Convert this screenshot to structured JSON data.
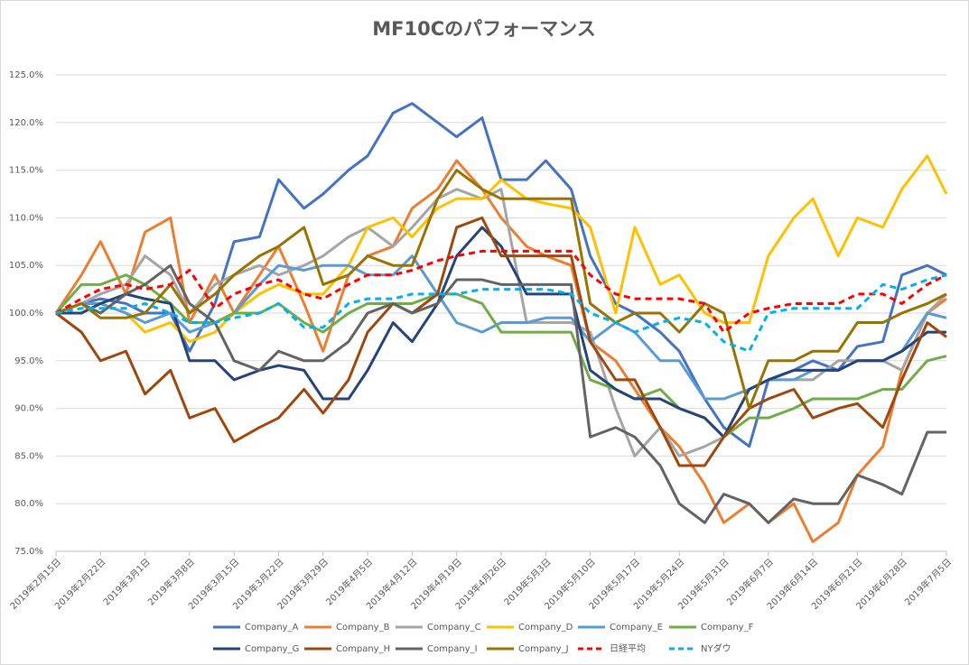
{
  "chart_data": {
    "type": "line",
    "title": "MF10Cのパフォーマンス",
    "x": [
      "2019-02-15",
      "2019-02-19",
      "2019-02-22",
      "2019-02-26",
      "2019-03-01",
      "2019-03-05",
      "2019-03-08",
      "2019-03-12",
      "2019-03-15",
      "2019-03-19",
      "2019-03-22",
      "2019-03-26",
      "2019-03-29",
      "2019-04-02",
      "2019-04-05",
      "2019-04-09",
      "2019-04-12",
      "2019-04-16",
      "2019-04-19",
      "2019-04-23",
      "2019-04-26",
      "2019-04-30",
      "2019-05-03",
      "2019-05-07",
      "2019-05-10",
      "2019-05-14",
      "2019-05-17",
      "2019-05-21",
      "2019-05-24",
      "2019-05-28",
      "2019-05-31",
      "2019-06-04",
      "2019-06-07",
      "2019-06-11",
      "2019-06-14",
      "2019-06-18",
      "2019-06-21",
      "2019-06-25",
      "2019-06-28",
      "2019-07-02",
      "2019-07-05"
    ],
    "xlim": [
      "2019-02-15",
      "2019-07-05"
    ],
    "xticks": [
      {
        "value": "2019-02-15",
        "label": "2019年2月15日"
      },
      {
        "value": "2019-02-22",
        "label": "2019年2月22日"
      },
      {
        "value": "2019-03-01",
        "label": "2019年3月1日"
      },
      {
        "value": "2019-03-08",
        "label": "2019年3月8日"
      },
      {
        "value": "2019-03-15",
        "label": "2019年3月15日"
      },
      {
        "value": "2019-03-22",
        "label": "2019年3月22日"
      },
      {
        "value": "2019-03-29",
        "label": "2019年3月29日"
      },
      {
        "value": "2019-04-05",
        "label": "2019年4月5日"
      },
      {
        "value": "2019-04-12",
        "label": "2019年4月12日"
      },
      {
        "value": "2019-04-19",
        "label": "2019年4月19日"
      },
      {
        "value": "2019-04-26",
        "label": "2019年4月26日"
      },
      {
        "value": "2019-05-03",
        "label": "2019年5月3日"
      },
      {
        "value": "2019-05-10",
        "label": "2019年5月10日"
      },
      {
        "value": "2019-05-17",
        "label": "2019年5月17日"
      },
      {
        "value": "2019-05-24",
        "label": "2019年5月24日"
      },
      {
        "value": "2019-05-31",
        "label": "2019年5月31日"
      },
      {
        "value": "2019-06-07",
        "label": "2019年6月7日"
      },
      {
        "value": "2019-06-14",
        "label": "2019年6月14日"
      },
      {
        "value": "2019-06-21",
        "label": "2019年6月21日"
      },
      {
        "value": "2019-06-28",
        "label": "2019年6月28日"
      },
      {
        "value": "2019-07-05",
        "label": "2019年7月5日"
      }
    ],
    "ylim": [
      75,
      125
    ],
    "yticks": [
      {
        "value": 75,
        "label": "75.0%"
      },
      {
        "value": 80,
        "label": "80.0%"
      },
      {
        "value": 85,
        "label": "85.0%"
      },
      {
        "value": 90,
        "label": "90.0%"
      },
      {
        "value": 95,
        "label": "95.0%"
      },
      {
        "value": 100,
        "label": "100.0%"
      },
      {
        "value": 105,
        "label": "105.0%"
      },
      {
        "value": 110,
        "label": "110.0%"
      },
      {
        "value": 115,
        "label": "115.0%"
      },
      {
        "value": 120,
        "label": "120.0%"
      },
      {
        "value": 125,
        "label": "125.0%"
      }
    ],
    "grid": true,
    "legend": "bottom",
    "series": [
      {
        "name": "Company_A",
        "color": "#4472c4",
        "values": [
          100,
          101,
          101.5,
          101,
          100,
          100,
          96,
          101,
          107.5,
          108,
          114,
          111,
          112.5,
          115,
          116.5,
          121,
          122,
          120,
          118.5,
          120.5,
          114,
          114,
          116,
          113,
          106,
          101,
          100,
          98,
          96,
          91,
          88,
          86,
          93,
          94,
          95,
          94,
          96.5,
          97,
          104,
          105,
          104
        ]
      },
      {
        "name": "Company_B",
        "color": "#ed7d31",
        "values": [
          100,
          104,
          107.5,
          102,
          108.5,
          110,
          99,
          104,
          100,
          104,
          107,
          101,
          96,
          104,
          106,
          107,
          111,
          113,
          116,
          113,
          110,
          107,
          106,
          105,
          97,
          95,
          92,
          88,
          86,
          82,
          78,
          80,
          78,
          80,
          76,
          78,
          83,
          86,
          94,
          100,
          101.5
        ]
      },
      {
        "name": "Company_C",
        "color": "#a5a5a5",
        "values": [
          100,
          101,
          102,
          103,
          106,
          104,
          100,
          103,
          104,
          105,
          104,
          105,
          106,
          108,
          109,
          107,
          109,
          112,
          113,
          112,
          113,
          99,
          99,
          99,
          98,
          90,
          85,
          88,
          85,
          86,
          87,
          92,
          93,
          93,
          93,
          95,
          95,
          95,
          94,
          100,
          102
        ]
      },
      {
        "name": "Company_D",
        "color": "#ffc000",
        "values": [
          100,
          101,
          101,
          100,
          98,
          99,
          97,
          98,
          100,
          102,
          103,
          102,
          102,
          105,
          109,
          110,
          108,
          111,
          112,
          112,
          114,
          112,
          111.5,
          111,
          109,
          100,
          109,
          103,
          104,
          100,
          99,
          99,
          106,
          110,
          112,
          106,
          110,
          109,
          113,
          116.5,
          112.5
        ]
      },
      {
        "name": "Company_E",
        "color": "#5b9bd5",
        "values": [
          100,
          101,
          101,
          100,
          99,
          100,
          98,
          99,
          100,
          103,
          105,
          104.5,
          105,
          105,
          104,
          104,
          106,
          102,
          99,
          98,
          99,
          99,
          99.5,
          99.5,
          97,
          99,
          98,
          95,
          95,
          91,
          91,
          92,
          93,
          93,
          94,
          94,
          95,
          95,
          96,
          100,
          99.5
        ]
      },
      {
        "name": "Company_F",
        "color": "#70ad47",
        "values": [
          100,
          103,
          103,
          104,
          103,
          101,
          99,
          99,
          100,
          100,
          101,
          99,
          98,
          100,
          101,
          101,
          101,
          102,
          102,
          101,
          98,
          98,
          98,
          98,
          93,
          92,
          91,
          92,
          90,
          89,
          87,
          89,
          89,
          90,
          91,
          91,
          91,
          92,
          92,
          95,
          95.5
        ]
      },
      {
        "name": "Company_G",
        "color": "#264478",
        "values": [
          100,
          100,
          101,
          102,
          101.5,
          101,
          95,
          95,
          93,
          94,
          94.5,
          94,
          91,
          91,
          94,
          99,
          97,
          101,
          106,
          109,
          107,
          102,
          102,
          102,
          94,
          92,
          91,
          91,
          90,
          89,
          87,
          92,
          93,
          94,
          94,
          94,
          95,
          95,
          96,
          98,
          98
        ]
      },
      {
        "name": "Company_H",
        "color": "#9e480e",
        "values": [
          100,
          98,
          95,
          96,
          91.5,
          94,
          89,
          90,
          86.5,
          88,
          89,
          92,
          89.5,
          93,
          98,
          101,
          100,
          102,
          109,
          110,
          106,
          106,
          106,
          106,
          97,
          93,
          93,
          88,
          84,
          84,
          87,
          90,
          91,
          92,
          89,
          90,
          90.5,
          88,
          93,
          99,
          97.5
        ]
      },
      {
        "name": "Company_I",
        "color": "#636363",
        "values": [
          100,
          101,
          100,
          102,
          103,
          105,
          101,
          99,
          95,
          94,
          96,
          95,
          95,
          97,
          100,
          101,
          100,
          101,
          103.5,
          103.5,
          103,
          103,
          103,
          103,
          87,
          88,
          87,
          84,
          80,
          78,
          81,
          80,
          78,
          80.5,
          80,
          80,
          83,
          82,
          81,
          87.5,
          87.5
        ]
      },
      {
        "name": "Company_J",
        "color": "#997300",
        "values": [
          100,
          101,
          99.5,
          99.5,
          100,
          103,
          100,
          102,
          104,
          106,
          107,
          109,
          103,
          104,
          106,
          105,
          105,
          112,
          115,
          113,
          112,
          112,
          112,
          112,
          101,
          99,
          100,
          100,
          98,
          101,
          100,
          90,
          95,
          95,
          96,
          96,
          99,
          99,
          100,
          101,
          102
        ]
      },
      {
        "name": "日経平均",
        "color": "#ff0000",
        "dashed": true,
        "values": [
          100,
          101.5,
          102.5,
          103,
          102.5,
          103,
          104.5,
          100.5,
          102,
          103,
          103.5,
          102,
          101.5,
          103,
          104,
          104,
          104.5,
          105.5,
          106,
          106.5,
          106.5,
          106.5,
          106.5,
          106.5,
          104,
          102,
          101.5,
          101.5,
          101.5,
          101,
          98,
          100,
          100.5,
          101,
          101,
          101,
          102,
          102,
          101,
          103,
          104
        ]
      },
      {
        "name": "NYダウ",
        "color": "#00b0f0",
        "dashed": true,
        "values": [
          100,
          100.5,
          100.5,
          100.5,
          101,
          100,
          99,
          99,
          99.5,
          100,
          101,
          98.5,
          98.5,
          101,
          101.5,
          101.5,
          102,
          102,
          102,
          102.5,
          102.5,
          102.5,
          102.5,
          102,
          100,
          99,
          98,
          99,
          99.5,
          99,
          97,
          96,
          100,
          100.5,
          100.5,
          100.5,
          100.5,
          103,
          102.5,
          103.5,
          104
        ]
      }
    ]
  }
}
